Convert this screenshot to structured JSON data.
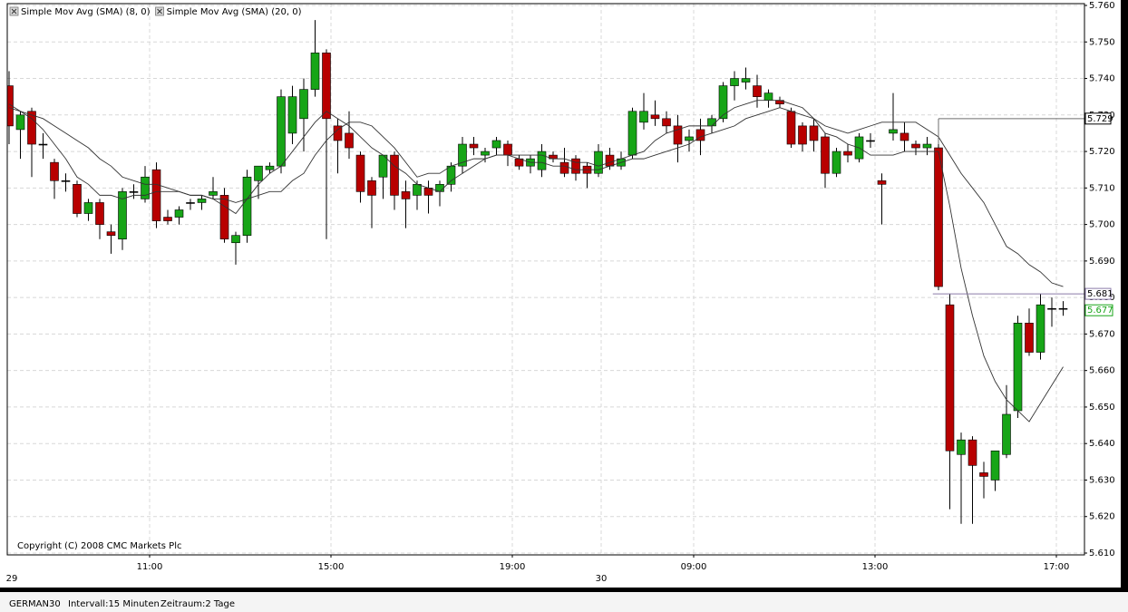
{
  "chart_data": {
    "type": "candlestick",
    "copyright": "Copyright (C) 2008 CMC Markets Plc",
    "ylim": [
      5.61,
      5.76
    ],
    "yticks": [
      {
        "value": 5.61,
        "label": "5.610"
      },
      {
        "value": 5.62,
        "label": "5.620"
      },
      {
        "value": 5.63,
        "label": "5.630"
      },
      {
        "value": 5.64,
        "label": "5.640"
      },
      {
        "value": 5.65,
        "label": "5.650"
      },
      {
        "value": 5.66,
        "label": "5.660"
      },
      {
        "value": 5.67,
        "label": "5.670"
      },
      {
        "value": 5.68,
        "label": "5.680"
      },
      {
        "value": 5.69,
        "label": "5.690"
      },
      {
        "value": 5.7,
        "label": "5.700"
      },
      {
        "value": 5.71,
        "label": "5.710"
      },
      {
        "value": 5.72,
        "label": "5.720"
      },
      {
        "value": 5.73,
        "label": "5.730"
      },
      {
        "value": 5.74,
        "label": "5.740"
      },
      {
        "value": 5.75,
        "label": "5.750"
      },
      {
        "value": 5.76,
        "label": "5.760"
      }
    ],
    "grid": true,
    "up_color": "#17a517",
    "down_color": "#b80000",
    "categories": [
      null,
      null,
      null,
      null,
      null,
      null,
      null,
      null,
      null,
      null,
      null,
      null,
      "11:00",
      null,
      null,
      null,
      null,
      null,
      null,
      null,
      null,
      null,
      null,
      null,
      null,
      null,
      null,
      null,
      "15:00",
      null,
      null,
      null,
      null,
      null,
      null,
      null,
      null,
      null,
      null,
      null,
      null,
      null,
      null,
      null,
      "19:00",
      null,
      null,
      null,
      null,
      null,
      null,
      null,
      null,
      null,
      null,
      null,
      null,
      null,
      null,
      null,
      "09:00",
      null,
      null,
      null,
      null,
      null,
      null,
      null,
      null,
      null,
      null,
      null,
      null,
      null,
      null,
      null,
      "13:00",
      null,
      null,
      null,
      null,
      null,
      null,
      null,
      null,
      null,
      null,
      null,
      null,
      null,
      null,
      null,
      "17:00",
      null
    ],
    "dates": [
      "29",
      null,
      null,
      null,
      null,
      null,
      null,
      null,
      null,
      null,
      null,
      null,
      null,
      null,
      null,
      null,
      null,
      null,
      null,
      null,
      null,
      null,
      null,
      null,
      null,
      null,
      null,
      null,
      null,
      null,
      null,
      null,
      null,
      null,
      null,
      null,
      null,
      null,
      null,
      null,
      null,
      null,
      null,
      null,
      null,
      null,
      null,
      null,
      null,
      null,
      null,
      null,
      "30",
      null,
      null,
      null,
      null,
      null,
      null,
      null,
      null,
      null,
      null,
      null,
      null,
      null,
      null,
      null,
      null,
      null,
      null,
      null,
      null,
      null,
      null,
      null,
      null,
      null,
      null,
      null,
      null,
      null,
      null,
      null,
      null,
      null,
      null,
      null,
      null,
      null,
      null,
      null,
      null,
      null
    ],
    "open": [
      5.738,
      5.726,
      5.731,
      5.722,
      5.717,
      5.712,
      5.711,
      5.703,
      5.706,
      5.698,
      5.696,
      5.709,
      5.707,
      5.715,
      5.702,
      5.702,
      5.706,
      5.706,
      5.708,
      5.708,
      5.695,
      5.697,
      5.712,
      5.715,
      5.716,
      5.725,
      5.729,
      5.737,
      5.747,
      5.727,
      5.725,
      5.719,
      5.712,
      5.713,
      5.719,
      5.709,
      5.708,
      5.71,
      5.709,
      5.711,
      5.716,
      5.722,
      5.719,
      5.721,
      5.722,
      5.718,
      5.716,
      5.715,
      5.719,
      5.717,
      5.718,
      5.716,
      5.714,
      5.719,
      5.716,
      5.719,
      5.728,
      5.73,
      5.729,
      5.727,
      5.723,
      5.726,
      5.727,
      5.729,
      5.738,
      5.739,
      5.738,
      5.734,
      5.734,
      5.731,
      5.727,
      5.727,
      5.724,
      5.714,
      5.72,
      5.718,
      5.723,
      5.712,
      5.725,
      5.725,
      5.722,
      5.721,
      5.721,
      5.678,
      5.637,
      5.641,
      5.632,
      5.63,
      5.637,
      5.649,
      5.673,
      5.665,
      5.677,
      5.677
    ],
    "high": [
      5.742,
      5.731,
      5.732,
      5.725,
      5.718,
      5.714,
      5.712,
      5.707,
      5.707,
      5.7,
      5.71,
      5.711,
      5.716,
      5.717,
      5.704,
      5.705,
      5.707,
      5.708,
      5.713,
      5.71,
      5.698,
      5.715,
      5.716,
      5.717,
      5.737,
      5.738,
      5.74,
      5.756,
      5.748,
      5.729,
      5.731,
      5.72,
      5.713,
      5.719,
      5.72,
      5.712,
      5.712,
      5.712,
      5.712,
      5.717,
      5.724,
      5.724,
      5.721,
      5.724,
      5.723,
      5.719,
      5.719,
      5.722,
      5.72,
      5.721,
      5.719,
      5.717,
      5.722,
      5.721,
      5.72,
      5.732,
      5.736,
      5.734,
      5.731,
      5.73,
      5.726,
      5.729,
      5.73,
      5.739,
      5.742,
      5.743,
      5.741,
      5.737,
      5.735,
      5.732,
      5.728,
      5.729,
      5.725,
      5.721,
      5.722,
      5.725,
      5.725,
      5.714,
      5.736,
      5.728,
      5.723,
      5.724,
      5.722,
      5.681,
      5.643,
      5.642,
      5.635,
      5.638,
      5.656,
      5.675,
      5.677,
      5.681,
      5.68,
      5.679
    ],
    "low": [
      5.722,
      5.718,
      5.713,
      5.718,
      5.707,
      5.709,
      5.702,
      5.701,
      5.696,
      5.692,
      5.693,
      5.707,
      5.706,
      5.699,
      5.7,
      5.7,
      5.704,
      5.704,
      5.707,
      5.695,
      5.689,
      5.695,
      5.707,
      5.714,
      5.714,
      5.722,
      5.72,
      5.735,
      5.696,
      5.714,
      5.718,
      5.706,
      5.699,
      5.707,
      5.704,
      5.699,
      5.704,
      5.703,
      5.705,
      5.709,
      5.714,
      5.719,
      5.717,
      5.719,
      5.716,
      5.715,
      5.714,
      5.713,
      5.717,
      5.713,
      5.712,
      5.71,
      5.713,
      5.715,
      5.715,
      5.718,
      5.726,
      5.727,
      5.725,
      5.717,
      5.72,
      5.719,
      5.725,
      5.728,
      5.734,
      5.737,
      5.732,
      5.732,
      5.732,
      5.721,
      5.72,
      5.72,
      5.71,
      5.713,
      5.717,
      5.717,
      5.721,
      5.7,
      5.723,
      5.72,
      5.719,
      5.719,
      5.682,
      5.622,
      5.618,
      5.618,
      5.625,
      5.627,
      5.636,
      5.647,
      5.664,
      5.663,
      5.672,
      5.675
    ],
    "close": [
      5.727,
      5.73,
      5.722,
      5.722,
      5.712,
      5.712,
      5.703,
      5.706,
      5.7,
      5.697,
      5.709,
      5.709,
      5.713,
      5.701,
      5.701,
      5.704,
      5.706,
      5.707,
      5.709,
      5.696,
      5.697,
      5.713,
      5.716,
      5.716,
      5.735,
      5.735,
      5.737,
      5.747,
      5.729,
      5.723,
      5.721,
      5.709,
      5.708,
      5.719,
      5.708,
      5.707,
      5.711,
      5.708,
      5.711,
      5.716,
      5.722,
      5.721,
      5.72,
      5.723,
      5.719,
      5.716,
      5.718,
      5.72,
      5.718,
      5.714,
      5.714,
      5.714,
      5.72,
      5.716,
      5.718,
      5.731,
      5.731,
      5.729,
      5.727,
      5.722,
      5.724,
      5.723,
      5.729,
      5.738,
      5.74,
      5.74,
      5.735,
      5.736,
      5.733,
      5.722,
      5.722,
      5.723,
      5.714,
      5.72,
      5.719,
      5.724,
      5.723,
      5.711,
      5.726,
      5.723,
      5.721,
      5.722,
      5.683,
      5.638,
      5.641,
      5.634,
      5.631,
      5.638,
      5.648,
      5.673,
      5.665,
      5.678,
      5.677,
      5.677
    ],
    "overlays": [
      {
        "name": "Simple Mov Avg (SMA) (8, 0)",
        "color": "#333333",
        "values": [
          5.733,
          5.731,
          5.729,
          5.726,
          5.722,
          5.718,
          5.713,
          5.711,
          5.708,
          5.708,
          5.707,
          5.708,
          5.708,
          5.709,
          5.709,
          5.709,
          5.708,
          5.708,
          5.707,
          5.705,
          5.703,
          5.707,
          5.711,
          5.714,
          5.716,
          5.72,
          5.724,
          5.728,
          5.731,
          5.729,
          5.727,
          5.724,
          5.721,
          5.719,
          5.716,
          5.714,
          5.711,
          5.71,
          5.709,
          5.712,
          5.714,
          5.716,
          5.718,
          5.719,
          5.719,
          5.719,
          5.719,
          5.719,
          5.718,
          5.718,
          5.717,
          5.717,
          5.716,
          5.717,
          5.718,
          5.719,
          5.72,
          5.723,
          5.725,
          5.726,
          5.727,
          5.727,
          5.727,
          5.73,
          5.732,
          5.733,
          5.734,
          5.734,
          5.734,
          5.733,
          5.732,
          5.729,
          5.725,
          5.724,
          5.722,
          5.721,
          5.719,
          5.719,
          5.719,
          5.72,
          5.72,
          5.72,
          5.72,
          5.705,
          5.688,
          5.675,
          5.664,
          5.657,
          5.652,
          5.649,
          5.646,
          5.651,
          5.656,
          5.661
        ]
      },
      {
        "name": "Simple Mov Avg (SMA) (20, 0)",
        "color": "#333333",
        "values": [
          5.732,
          5.731,
          5.73,
          5.729,
          5.727,
          5.725,
          5.723,
          5.721,
          5.718,
          5.716,
          5.713,
          5.712,
          5.711,
          5.711,
          5.71,
          5.709,
          5.708,
          5.708,
          5.707,
          5.707,
          5.706,
          5.707,
          5.708,
          5.709,
          5.709,
          5.712,
          5.714,
          5.719,
          5.723,
          5.726,
          5.728,
          5.728,
          5.727,
          5.724,
          5.721,
          5.717,
          5.713,
          5.714,
          5.714,
          5.716,
          5.717,
          5.718,
          5.718,
          5.719,
          5.719,
          5.718,
          5.717,
          5.717,
          5.716,
          5.716,
          5.715,
          5.715,
          5.715,
          5.716,
          5.717,
          5.718,
          5.718,
          5.719,
          5.72,
          5.721,
          5.722,
          5.724,
          5.725,
          5.726,
          5.727,
          5.729,
          5.73,
          5.731,
          5.732,
          5.731,
          5.73,
          5.729,
          5.727,
          5.726,
          5.725,
          5.726,
          5.727,
          5.728,
          5.728,
          5.728,
          5.728,
          5.726,
          5.724,
          5.719,
          5.714,
          5.71,
          5.706,
          5.7,
          5.694,
          5.692,
          5.689,
          5.687,
          5.684,
          5.683
        ]
      }
    ],
    "price_lines": [
      {
        "value": 5.729,
        "color": "#6e6e6e"
      },
      {
        "value": 5.681,
        "color": "#8a7aa8"
      }
    ],
    "last_price": {
      "value": 5.677,
      "color": "#17a517"
    }
  },
  "footer": {
    "symbol": "GERMAN30",
    "interval": "Intervall:15 Minuten",
    "period": "Zeitraum:2 Tage"
  }
}
